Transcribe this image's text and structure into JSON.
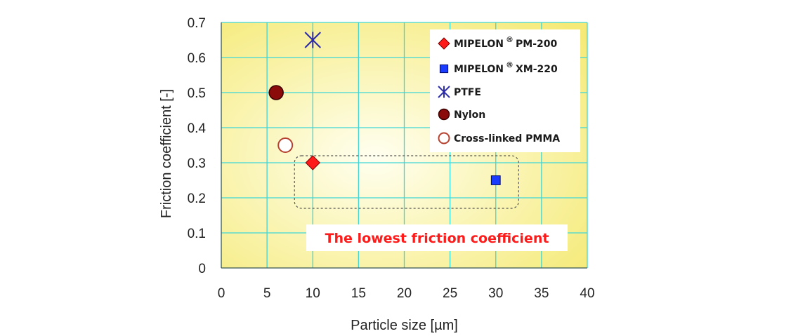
{
  "chart_data": {
    "type": "scatter",
    "title": "",
    "xlabel": "Particle size [µm]",
    "ylabel": "Friction coefficient [-]",
    "xlim": [
      0,
      40
    ],
    "ylim": [
      0,
      0.7
    ],
    "x_ticks": [
      "0",
      "5",
      "10",
      "15",
      "20",
      "25",
      "30",
      "35",
      "40"
    ],
    "y_ticks": [
      "0",
      "0.1",
      "0.2",
      "0.3",
      "0.4",
      "0.5",
      "0.6",
      "0.7"
    ],
    "grid": true,
    "legend_position": "top-right",
    "series": [
      {
        "name": "MIPELON",
        "suffix": "PM-200",
        "registered": "®",
        "marker": "diamond",
        "color": "#ff1a1a",
        "points": [
          {
            "x": 10,
            "y": 0.3
          }
        ]
      },
      {
        "name": "MIPELON",
        "suffix": "XM-220",
        "registered": "®",
        "marker": "square",
        "color": "#1a3cff",
        "points": [
          {
            "x": 30,
            "y": 0.25
          }
        ]
      },
      {
        "name": "PTFE",
        "suffix": "",
        "registered": "",
        "marker": "asterisk",
        "color": "#2b2ba8",
        "points": [
          {
            "x": 10,
            "y": 0.65
          }
        ]
      },
      {
        "name": "Nylon",
        "suffix": "",
        "registered": "",
        "marker": "circle-filled",
        "color": "#8b0a0a",
        "points": [
          {
            "x": 6,
            "y": 0.5
          }
        ]
      },
      {
        "name": "Cross-linked PMMA",
        "suffix": "",
        "registered": "",
        "marker": "circle-open",
        "color": "#b5412f",
        "points": [
          {
            "x": 7,
            "y": 0.35
          }
        ]
      }
    ],
    "annotation": {
      "text": "The lowest friction coefficient",
      "color": "#ff1a1a",
      "highlight_x_range": [
        8,
        32.5
      ],
      "highlight_y_range": [
        0.17,
        0.32
      ]
    },
    "background": {
      "gradient_center": "#fffff0",
      "gradient_edge": "#f5ea78",
      "grid_color": "#3fd6d6"
    }
  }
}
